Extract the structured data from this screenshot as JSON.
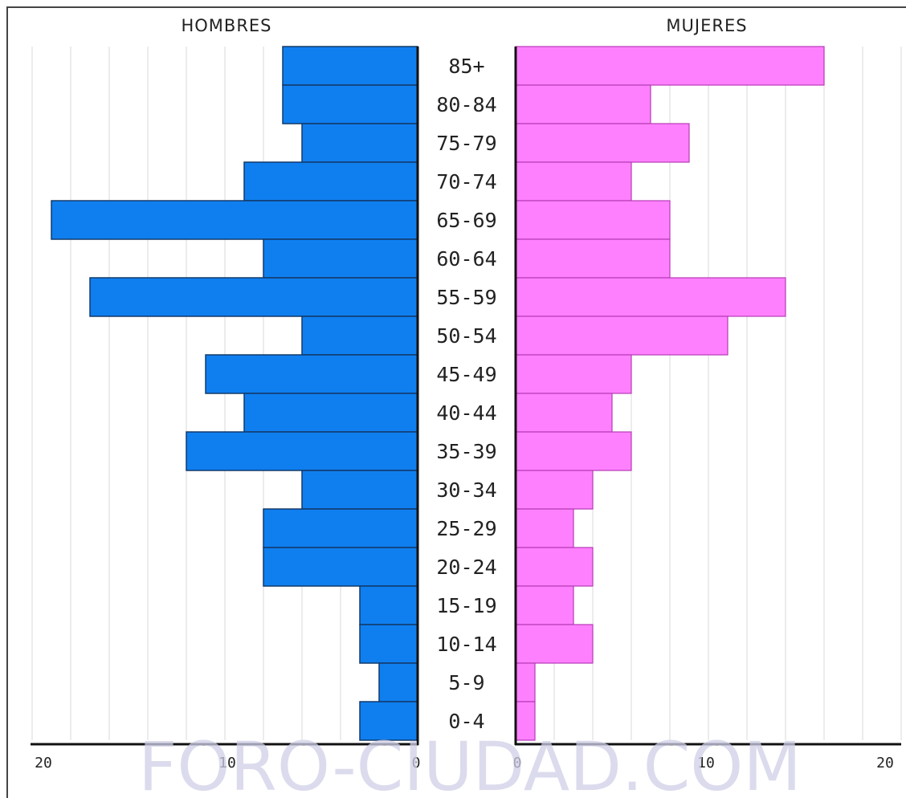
{
  "chart_data": {
    "type": "bar",
    "categories": [
      "85+",
      "80-84",
      "75-79",
      "70-74",
      "65-69",
      "60-64",
      "55-59",
      "50-54",
      "45-49",
      "40-44",
      "35-39",
      "30-34",
      "25-29",
      "20-24",
      "15-19",
      "10-14",
      "5-9",
      "0-4"
    ],
    "series": [
      {
        "name": "HOMBRES",
        "values": [
          7,
          7,
          6,
          9,
          19,
          8,
          17,
          6,
          11,
          9,
          12,
          6,
          8,
          8,
          3,
          3,
          2,
          3
        ],
        "color": "#0f7ff0"
      },
      {
        "name": "MUJERES",
        "values": [
          16,
          7,
          9,
          6,
          8,
          8,
          14,
          11,
          6,
          5,
          6,
          4,
          3,
          4,
          3,
          4,
          1,
          1
        ],
        "color": "#ff80ff"
      }
    ],
    "xlim": [
      0,
      20
    ],
    "x_ticks": [
      "20",
      "10",
      "0",
      "0",
      "10",
      "20"
    ],
    "grid": true
  },
  "watermark": "FORO-CIUDAD.COM"
}
